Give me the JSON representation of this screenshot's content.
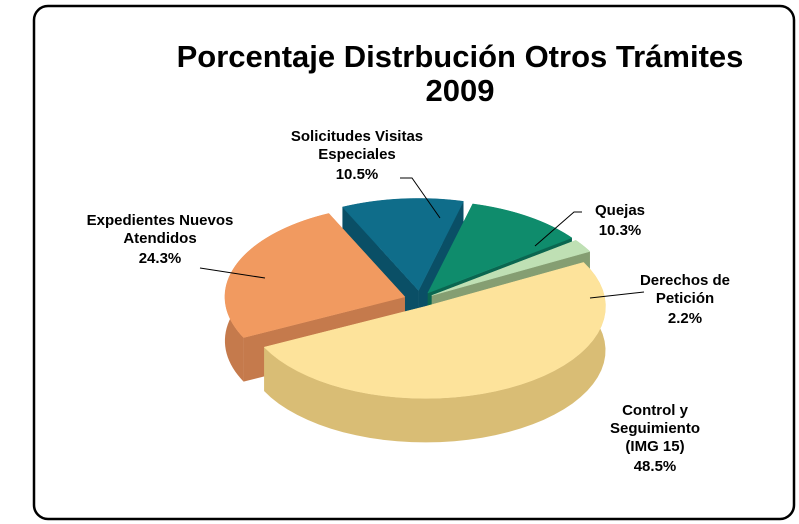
{
  "chart_data": {
    "type": "pie3d",
    "title": "Porcentaje Distrbución Otros Trámites 2009",
    "categories": [
      "Solicitudes Visitas Especiales",
      "Quejas",
      "Derechos de Petición",
      "Control y Seguimiento (IMG 15)",
      "Expedientes Nuevos Atendidos"
    ],
    "values": [
      10.5,
      10.3,
      2.2,
      48.5,
      24.3
    ],
    "value_labels": [
      "10.5%",
      "10.3%",
      "2.2%",
      "48.5%",
      "24.3%"
    ],
    "colors": [
      "#0f6d8a",
      "#0f8c6c",
      "#bfe0b4",
      "#fde39b",
      "#f19a60"
    ],
    "side_colors": [
      "#0a4f66",
      "#0a6650",
      "#859e72",
      "#d9bd75",
      "#c57a4c"
    ]
  }
}
